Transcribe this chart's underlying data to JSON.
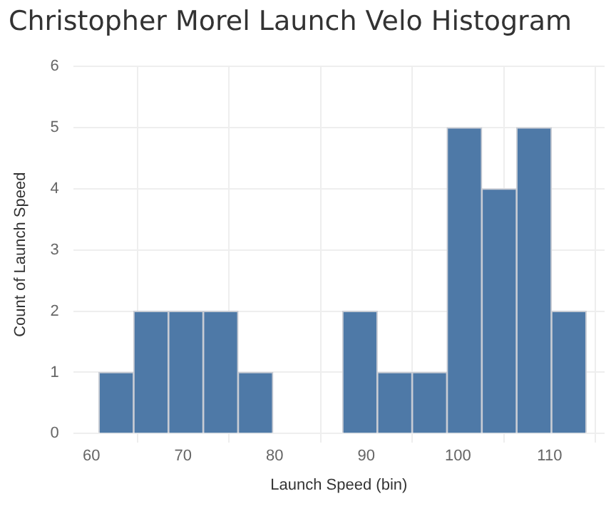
{
  "chart_data": {
    "type": "histogram",
    "title": "Christopher Morel Launch Velo Histogram",
    "xlabel": "Launch Speed (bin)",
    "ylabel": "Count of Launch Speed",
    "bins": [
      60.8,
      64.6,
      68.4,
      72.2,
      76.0,
      79.8,
      83.6,
      87.4,
      91.2,
      95.0,
      98.8,
      102.6,
      106.4,
      110.2,
      114.0
    ],
    "values": [
      1,
      2,
      2,
      2,
      1,
      0,
      0,
      2,
      1,
      1,
      5,
      4,
      5,
      2
    ],
    "color": "#4e79a7",
    "xlim": [
      58,
      116
    ],
    "xticks": [
      60,
      70,
      80,
      90,
      100,
      110
    ],
    "ylim": [
      -0.15,
      6
    ],
    "yticks": [
      0,
      1,
      2,
      3,
      4,
      5,
      6
    ],
    "grid": true,
    "legend": false
  }
}
